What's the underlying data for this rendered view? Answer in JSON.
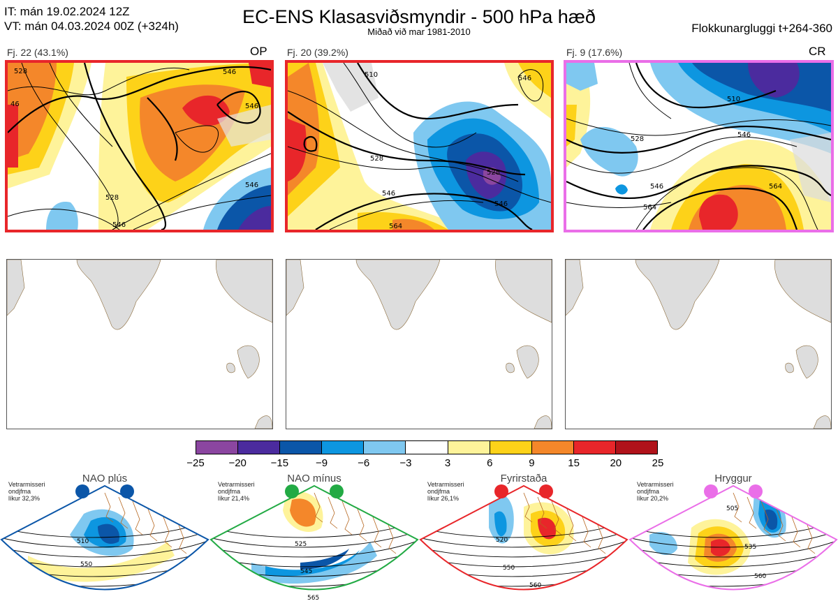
{
  "header": {
    "it_line": "IT: mán 19.02.2024 12Z",
    "vt_line": "VT: mán 04.03.2024 00Z  (+324h)",
    "title": "EC-ENS Klasasviðsmyndir - 500 hPa hæð",
    "subtitle": "Miðað við mar 1981-2010",
    "window": "Flokkunargluggi t+264-360"
  },
  "panels": [
    {
      "label": "Fj. 22 (43.1%)",
      "tag": "OP",
      "border_color": "#e8262a",
      "contours": [
        "528",
        "546",
        "546",
        "528",
        "546",
        "546",
        "46"
      ]
    },
    {
      "label": "Fj. 20 (39.2%)",
      "tag": "",
      "border_color": "#e8262a",
      "contours": [
        "510",
        "528",
        "528",
        "546",
        "546",
        "564",
        "546"
      ]
    },
    {
      "label": "Fj. 9 (17.6%)",
      "tag": "CR",
      "border_color": "#ea6ee8",
      "contours": [
        "510",
        "528",
        "546",
        "546",
        "564",
        "564"
      ]
    }
  ],
  "colorbar": {
    "colors": [
      "#8b46a0",
      "#4b2b9e",
      "#0b56a8",
      "#0d96e0",
      "#7fc8f0",
      "#ffffff",
      "#fef39a",
      "#fdd219",
      "#f4872a",
      "#e8262a",
      "#b0121a"
    ],
    "ticks": [
      "−25",
      "−20",
      "−15",
      "−9",
      "−6",
      "−3",
      "3",
      "6",
      "9",
      "15",
      "20",
      "25"
    ]
  },
  "regimes": [
    {
      "name": "NAO plús",
      "note": [
        "Vetrarmisseri",
        "ondjfma",
        "líkur 32,3%"
      ],
      "color": "#0b56a8",
      "contours": [
        "510",
        "550"
      ]
    },
    {
      "name": "NAO mínus",
      "note": [
        "Vetrarmisseri",
        "ondjfma",
        "líkur 21,4%"
      ],
      "color": "#22aa44",
      "contours": [
        "525",
        "545",
        "565"
      ]
    },
    {
      "name": "Fyrirstaða",
      "note": [
        "Vetrarmisseri",
        "ondjfma",
        "líkur 26,1%"
      ],
      "color": "#e8262a",
      "contours": [
        "520",
        "550",
        "560"
      ]
    },
    {
      "name": "Hryggur",
      "note": [
        "Vetrarmisseri",
        "ondjfma",
        "líkur 20,2%"
      ],
      "color": "#ea6ee8",
      "contours": [
        "505",
        "535",
        "560"
      ]
    }
  ]
}
